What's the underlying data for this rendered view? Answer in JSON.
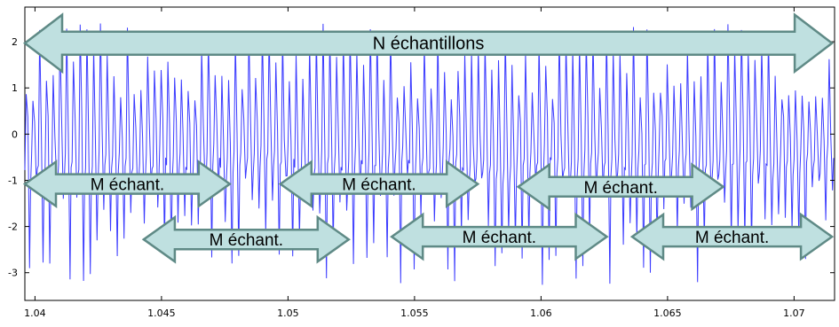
{
  "chart_data": {
    "type": "line",
    "xlim": [
      1.0396,
      1.0716
    ],
    "ylim": [
      -3.6,
      2.75
    ],
    "xticks": [
      {
        "value": 1.04,
        "label": "1.04"
      },
      {
        "value": 1.045,
        "label": "1.045"
      },
      {
        "value": 1.05,
        "label": "1.05"
      },
      {
        "value": 1.055,
        "label": "1.055"
      },
      {
        "value": 1.06,
        "label": "1.06"
      },
      {
        "value": 1.065,
        "label": "1.065"
      },
      {
        "value": 1.07,
        "label": "1.07"
      }
    ],
    "yticks": [
      {
        "value": 2,
        "label": "2"
      },
      {
        "value": 1,
        "label": "1"
      },
      {
        "value": 0,
        "label": "0"
      },
      {
        "value": -1,
        "label": "-1"
      },
      {
        "value": -2,
        "label": "-2"
      },
      {
        "value": -3,
        "label": "-3"
      }
    ],
    "grid": false,
    "series": [
      {
        "color": "#3b3bff",
        "cycles": 120,
        "peak_max": 2.6,
        "trough_min": -3.6
      }
    ],
    "annotations": [
      {
        "label": "N échantillons",
        "x_start": 1.0396,
        "x_end": 1.0715,
        "y": 1.97
      },
      {
        "label": "M échant.",
        "x_start": 1.0396,
        "x_end": 1.0477,
        "y": -1.08
      },
      {
        "label": "M échant.",
        "x_start": 1.0443,
        "x_end": 1.0524,
        "y": -2.28
      },
      {
        "label": "M échant.",
        "x_start": 1.0497,
        "x_end": 1.0575,
        "y": -1.08
      },
      {
        "label": "M échant.",
        "x_start": 1.0541,
        "x_end": 1.0626,
        "y": -2.22
      },
      {
        "label": "M échant.",
        "x_start": 1.0591,
        "x_end": 1.0672,
        "y": -1.14
      },
      {
        "label": "M échant.",
        "x_start": 1.0636,
        "x_end": 1.0715,
        "y": -2.22
      }
    ],
    "style": {
      "arrow_fill": "#bfe0e0",
      "arrow_stroke": "#5f8a86"
    }
  }
}
